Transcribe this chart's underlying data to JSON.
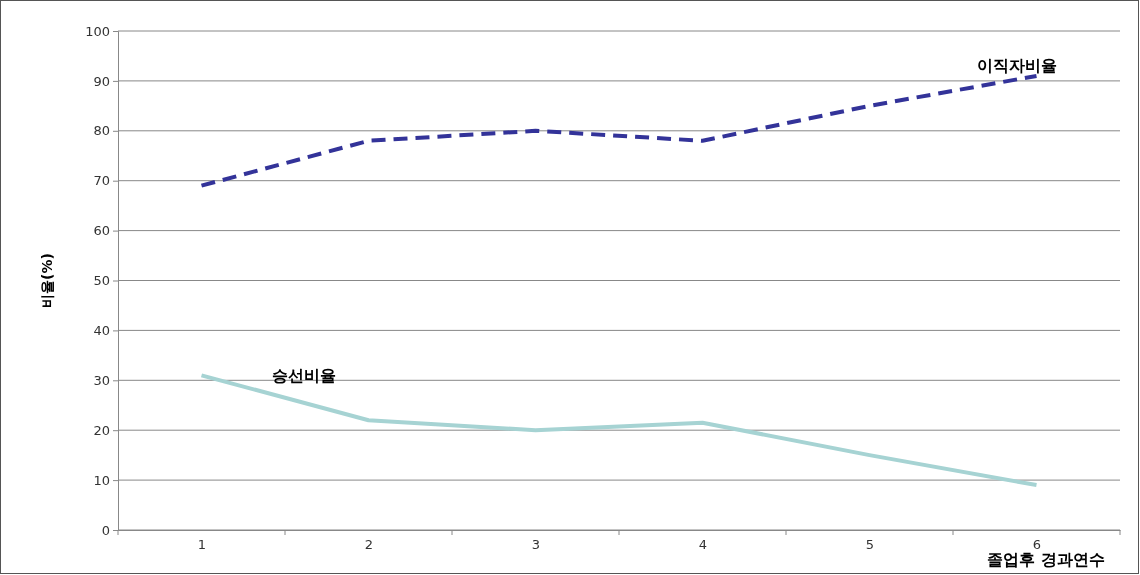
{
  "chart_data": {
    "type": "line",
    "ylabel": "비율(%)",
    "xlabel": "졸업후 경과연수",
    "categories": [
      "1",
      "2",
      "3",
      "4",
      "5",
      "6"
    ],
    "series": [
      {
        "name": "이직자비율",
        "color": "#333399",
        "line_style": "dashed",
        "values": [
          69,
          78,
          80,
          78,
          85,
          91
        ]
      },
      {
        "name": "승선비율",
        "color": "#a6d3d3",
        "line_style": "solid",
        "values": [
          31,
          22,
          20,
          21.5,
          15,
          9
        ]
      }
    ],
    "ylim": [
      0,
      100
    ],
    "yticks": [
      0,
      10,
      20,
      30,
      40,
      50,
      60,
      70,
      80,
      90,
      100
    ],
    "grid": "y",
    "marker": "none"
  }
}
